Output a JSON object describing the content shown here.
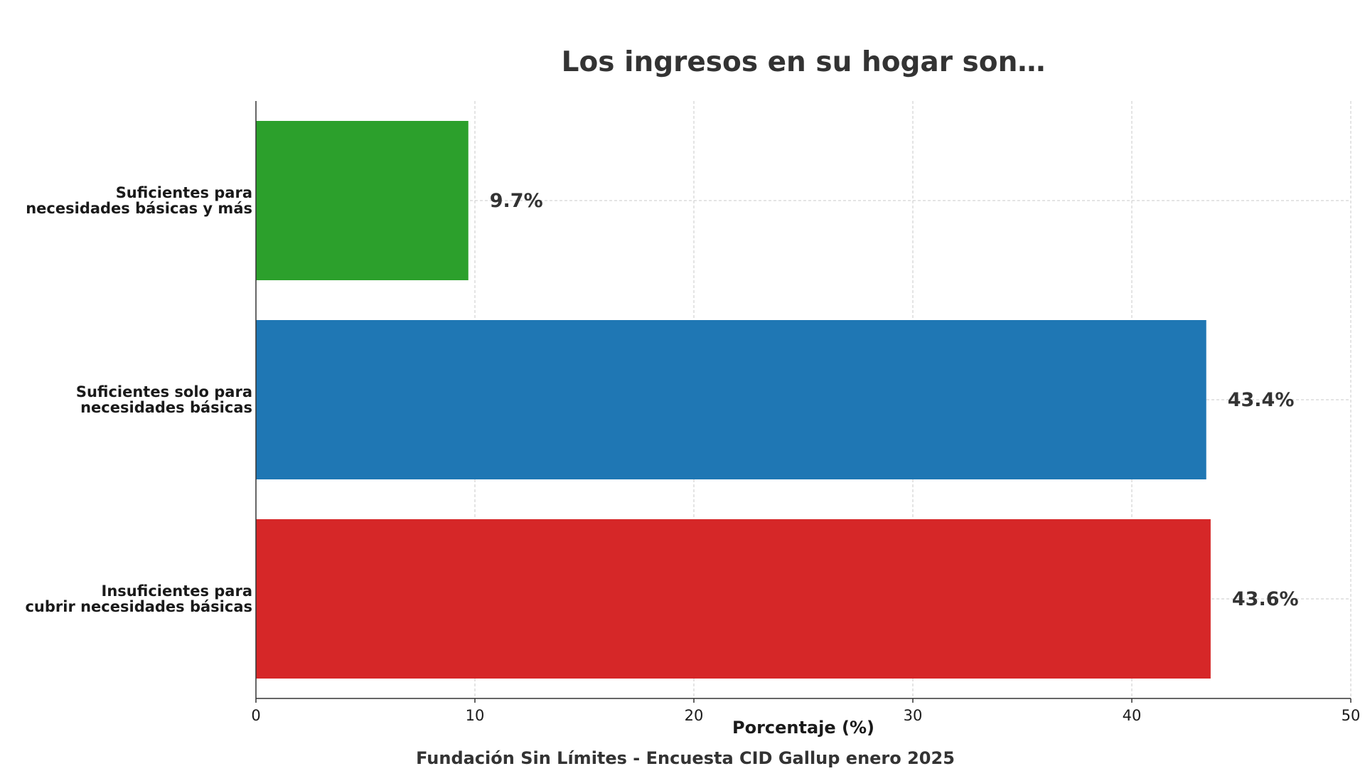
{
  "chart_data": {
    "type": "bar",
    "orientation": "horizontal",
    "title": "Los ingresos en su hogar son…",
    "xlabel": "Porcentaje (%)",
    "ylabel": "",
    "xlim": [
      0,
      50
    ],
    "xticks": [
      "0",
      "10",
      "20",
      "30",
      "40",
      "50"
    ],
    "grid": true,
    "legend": "none",
    "categories": [
      {
        "lines": [
          "Suficientes para",
          "necesidades básicas y más"
        ],
        "value": 9.7,
        "label": "9.7%",
        "color": "#2ca02c"
      },
      {
        "lines": [
          "Suficientes solo para",
          "necesidades básicas"
        ],
        "value": 43.4,
        "label": "43.4%",
        "color": "#1f77b4"
      },
      {
        "lines": [
          "Insuficientes para",
          "cubrir necesidades básicas"
        ],
        "value": 43.6,
        "label": "43.6%",
        "color": "#d62728"
      }
    ],
    "source": "Fundación Sin Límites - Encuesta CID Gallup enero 2025"
  }
}
